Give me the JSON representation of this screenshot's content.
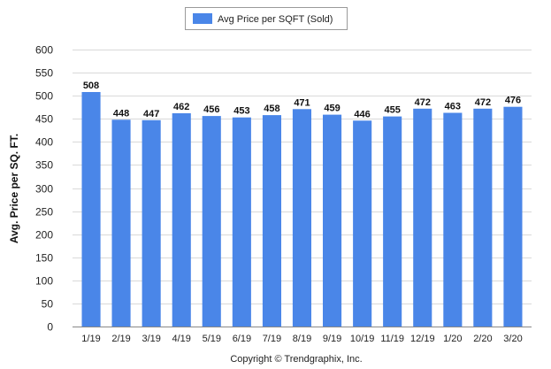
{
  "chart_data": {
    "type": "bar",
    "title": "",
    "xlabel": "",
    "ylabel": "Avg. Price per SQ. FT.",
    "ylim": [
      0,
      600
    ],
    "yticks": [
      0,
      50,
      100,
      150,
      200,
      250,
      300,
      350,
      400,
      450,
      500,
      550,
      600
    ],
    "grid": true,
    "legend_position": "top-center",
    "categories": [
      "1/19",
      "2/19",
      "3/19",
      "4/19",
      "5/19",
      "6/19",
      "7/19",
      "8/19",
      "9/19",
      "10/19",
      "11/19",
      "12/19",
      "1/20",
      "2/20",
      "3/20"
    ],
    "series": [
      {
        "name": "Avg Price per SQFT (Sold)",
        "color": "#4a86e8",
        "values": [
          508,
          448,
          447,
          462,
          456,
          453,
          458,
          471,
          459,
          446,
          455,
          472,
          463,
          472,
          476
        ]
      }
    ],
    "footer": "Copyright © Trendgraphix, Inc."
  }
}
